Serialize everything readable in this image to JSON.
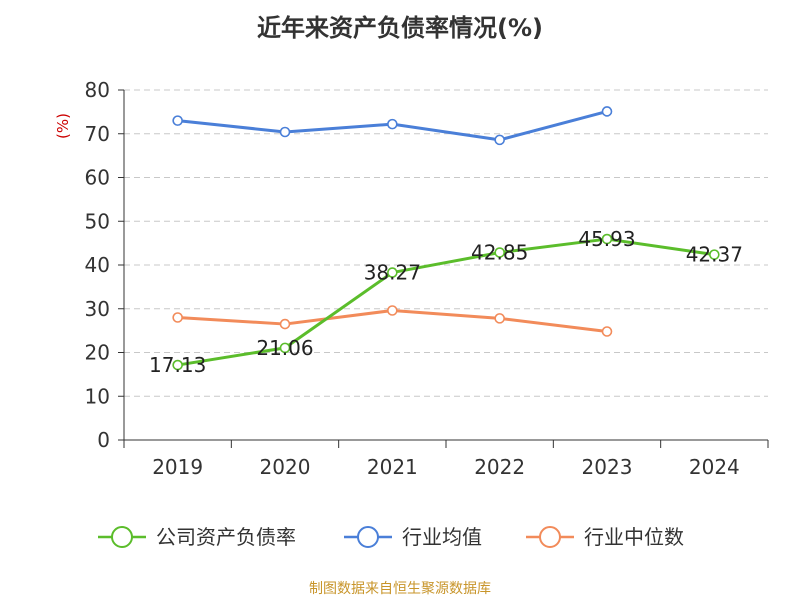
{
  "title": "近年来资产负债率情况(%)",
  "source": "制图数据来自恒生聚源数据库",
  "chart_data": {
    "type": "line",
    "title": "近年来资产负债率情况(%)",
    "ylabel": "(%)",
    "xlabel": "",
    "categories": [
      "2019",
      "2020",
      "2021",
      "2022",
      "2023",
      "2024"
    ],
    "ylim": [
      0,
      80
    ],
    "yticks": [
      0,
      10,
      20,
      30,
      40,
      50,
      60,
      70,
      80
    ],
    "grid": true,
    "legend_position": "bottom",
    "series": [
      {
        "name": "公司资产负债率",
        "color": "#5bbd2b",
        "values": [
          17.13,
          21.06,
          38.27,
          42.85,
          45.93,
          42.37
        ],
        "labels": [
          "17.13",
          "21.06",
          "38.27",
          "42.85",
          "45.93",
          "42.37"
        ]
      },
      {
        "name": "行业均值",
        "color": "#4a7fd8",
        "values": [
          73.0,
          70.4,
          72.2,
          68.6,
          75.1,
          null
        ]
      },
      {
        "name": "行业中位数",
        "color": "#f28b5a",
        "values": [
          28.0,
          26.5,
          29.6,
          27.8,
          24.8,
          null
        ]
      }
    ]
  }
}
